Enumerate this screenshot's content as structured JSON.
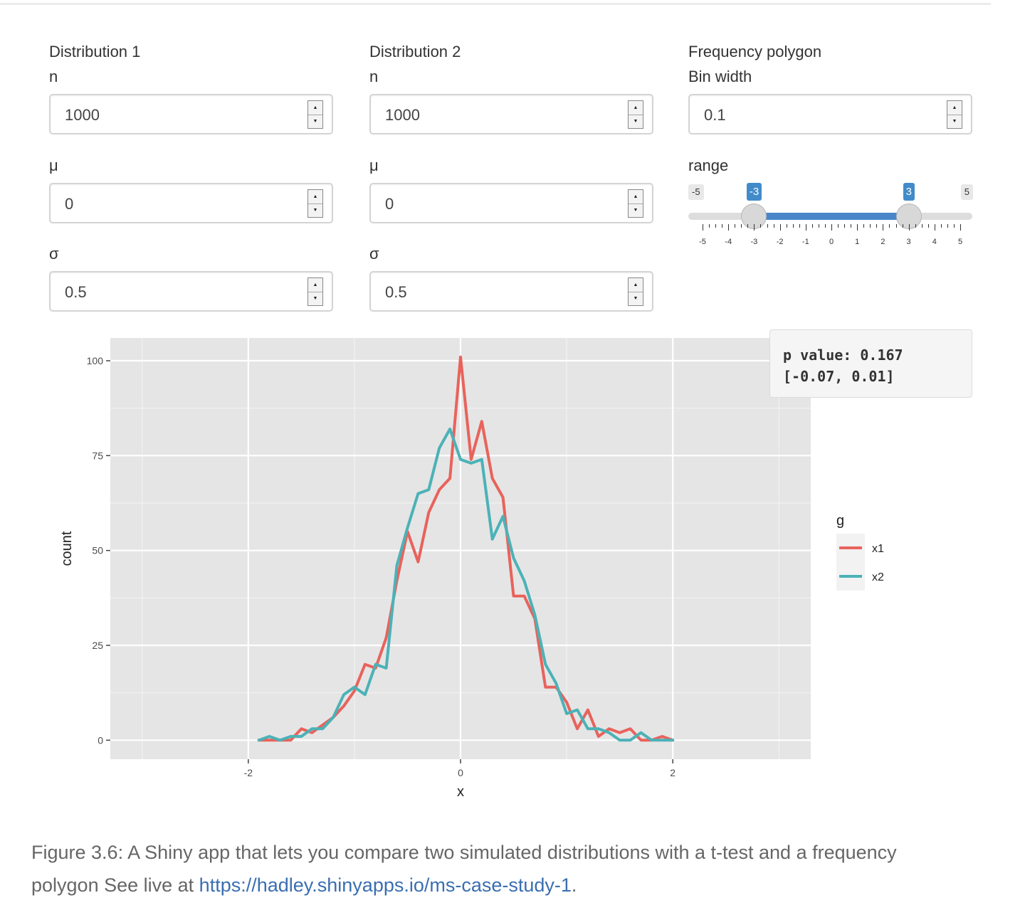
{
  "distribution1": {
    "heading": "Distribution 1",
    "n_label": "n",
    "n_value": "1000",
    "mu_label": "μ",
    "mu_value": "0",
    "sigma_label": "σ",
    "sigma_value": "0.5"
  },
  "distribution2": {
    "heading": "Distribution 2",
    "n_label": "n",
    "n_value": "1000",
    "mu_label": "μ",
    "mu_value": "0",
    "sigma_label": "σ",
    "sigma_value": "0.5"
  },
  "freq_polygon": {
    "heading": "Frequency polygon",
    "binwidth_label": "Bin width",
    "binwidth_value": "0.1",
    "range_label": "range",
    "range_min": -5,
    "range_max": 5,
    "range_from": -3,
    "range_to": 3,
    "range_min_label": "-5",
    "range_max_label": "5",
    "range_from_label": "-3",
    "range_to_label": "3",
    "range_ticks": [
      "-5",
      "-4",
      "-3",
      "-2",
      "-1",
      "0",
      "1",
      "2",
      "3",
      "4",
      "5"
    ]
  },
  "ttest": {
    "line1": "p value: 0.167",
    "line2": "[-0.07, 0.01]"
  },
  "colors": {
    "x1": "#e8635c",
    "x2": "#4bb2b7",
    "slider": "#428bca"
  },
  "chart_data": {
    "type": "line",
    "xlabel": "x",
    "ylabel": "count",
    "xlim": [
      -3.3,
      3.3
    ],
    "ylim": [
      -5,
      106
    ],
    "xticks": [
      -2,
      0,
      2
    ],
    "yticks": [
      0,
      25,
      50,
      75,
      100
    ],
    "legend_title": "g",
    "legend_position": "right",
    "series": [
      {
        "name": "x1",
        "x": [
          -1.9,
          -1.8,
          -1.7,
          -1.6,
          -1.5,
          -1.4,
          -1.3,
          -1.2,
          -1.1,
          -1.0,
          -0.9,
          -0.8,
          -0.7,
          -0.6,
          -0.5,
          -0.4,
          -0.3,
          -0.2,
          -0.1,
          0.0,
          0.1,
          0.2,
          0.3,
          0.4,
          0.5,
          0.6,
          0.7,
          0.8,
          0.9,
          1.0,
          1.1,
          1.2,
          1.3,
          1.4,
          1.5,
          1.6,
          1.7,
          1.8,
          1.9,
          2.0
        ],
        "y": [
          0,
          0,
          0,
          0,
          3,
          2,
          4,
          6,
          9,
          13,
          20,
          19,
          27,
          42,
          55,
          47,
          60,
          66,
          69,
          101,
          74,
          84,
          69,
          64,
          38,
          38,
          32,
          14,
          14,
          10,
          3,
          8,
          1,
          3,
          2,
          3,
          0,
          0,
          1,
          0
        ]
      },
      {
        "name": "x2",
        "x": [
          -1.9,
          -1.8,
          -1.7,
          -1.6,
          -1.5,
          -1.4,
          -1.3,
          -1.2,
          -1.1,
          -1.0,
          -0.9,
          -0.8,
          -0.7,
          -0.6,
          -0.5,
          -0.4,
          -0.3,
          -0.2,
          -0.1,
          0.0,
          0.1,
          0.2,
          0.3,
          0.4,
          0.5,
          0.6,
          0.7,
          0.8,
          0.9,
          1.0,
          1.1,
          1.2,
          1.3,
          1.4,
          1.5,
          1.6,
          1.7,
          1.8,
          1.9,
          2.0
        ],
        "y": [
          0,
          1,
          0,
          1,
          1,
          3,
          3,
          6,
          12,
          14,
          12,
          20,
          19,
          46,
          56,
          65,
          66,
          77,
          82,
          74,
          73,
          74,
          53,
          59,
          48,
          42,
          33,
          20,
          15,
          7,
          8,
          3,
          3,
          2,
          0,
          0,
          2,
          0,
          0,
          0
        ]
      }
    ]
  },
  "caption": {
    "text": "Figure 3.6: A Shiny app that lets you compare two simulated distributions with a t-test and a frequency polygon See live at ",
    "link": "https://hadley.shinyapps.io/ms-case-study-1",
    "end": "."
  }
}
